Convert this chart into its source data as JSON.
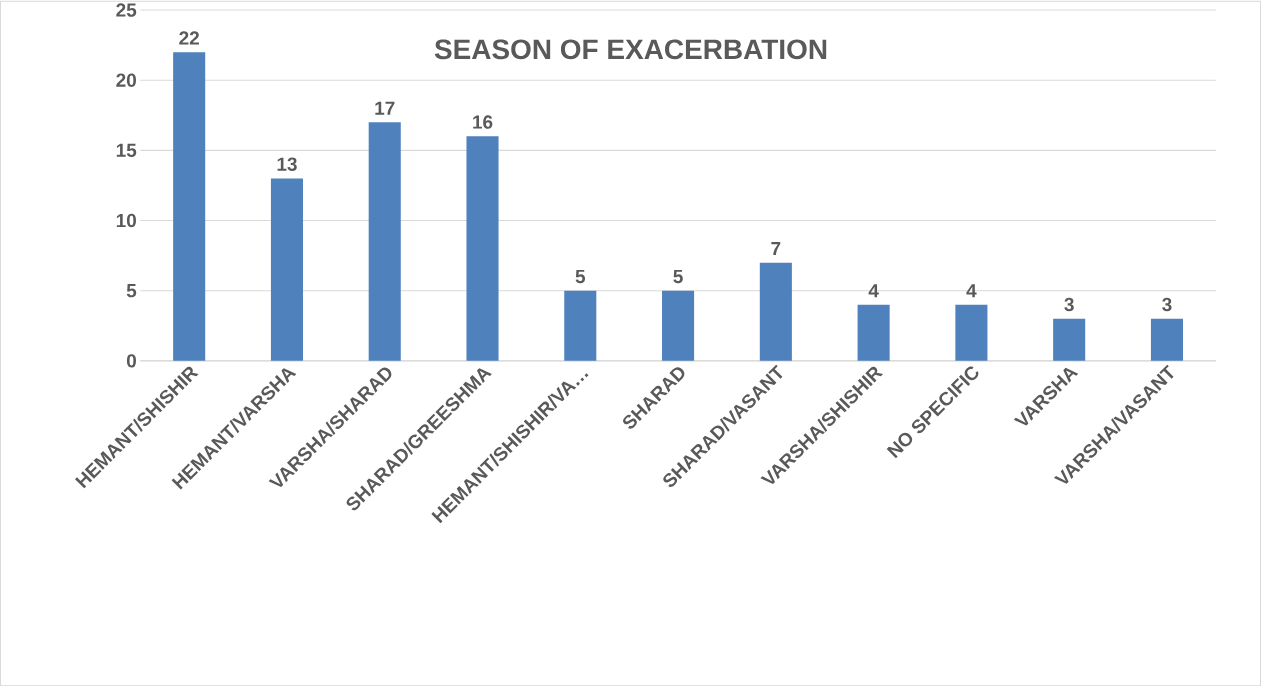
{
  "chart_data": {
    "type": "bar",
    "title": "SEASON OF EXACERBATION",
    "categories": [
      "HEMANT/SHISHIR",
      "HEMANT/VARSHA",
      "VARSHA/SHARAD",
      "SHARAD/GREESHMA",
      "HEMANT/SHISHIR/VA…",
      "SHARAD",
      "SHARAD/VASANT",
      "VARSHA/SHISHIR",
      "NO SPECIFIC",
      "VARSHA",
      "VARSHA/VASANT"
    ],
    "values": [
      22,
      13,
      17,
      16,
      5,
      5,
      7,
      4,
      4,
      3,
      3
    ],
    "color": "#4f81bd",
    "ylim": [
      0,
      25
    ],
    "yticks": [
      0,
      5,
      10,
      15,
      20,
      25
    ],
    "grid": "y",
    "data_labels": true
  }
}
